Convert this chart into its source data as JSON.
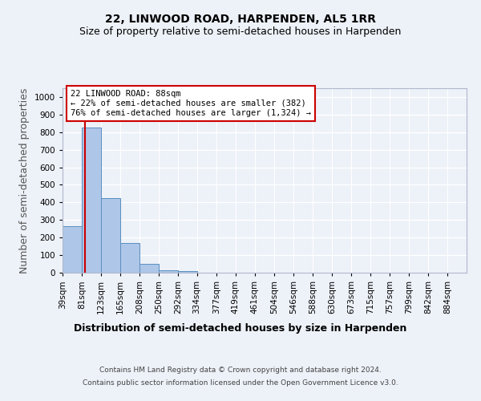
{
  "title_line1": "22, LINWOOD ROAD, HARPENDEN, AL5 1RR",
  "title_line2": "Size of property relative to semi-detached houses in Harpenden",
  "xlabel": "Distribution of semi-detached houses by size in Harpenden",
  "ylabel": "Number of semi-detached properties",
  "bin_labels": [
    "39sqm",
    "81sqm",
    "123sqm",
    "165sqm",
    "208sqm",
    "250sqm",
    "292sqm",
    "334sqm",
    "377sqm",
    "419sqm",
    "461sqm",
    "504sqm",
    "546sqm",
    "588sqm",
    "630sqm",
    "673sqm",
    "715sqm",
    "757sqm",
    "799sqm",
    "842sqm",
    "884sqm"
  ],
  "bin_edges": [
    39,
    81,
    123,
    165,
    208,
    250,
    292,
    334,
    377,
    419,
    461,
    504,
    546,
    588,
    630,
    673,
    715,
    757,
    799,
    842,
    884,
    926
  ],
  "bar_heights": [
    265,
    825,
    425,
    168,
    52,
    15,
    10,
    0,
    0,
    0,
    0,
    0,
    0,
    0,
    0,
    0,
    0,
    0,
    0,
    0,
    0
  ],
  "bar_color": "#aec6e8",
  "bar_edge_color": "#5a8fc0",
  "property_value": 88,
  "red_line_color": "#cc0000",
  "annotation_text_line1": "22 LINWOOD ROAD: 88sqm",
  "annotation_text_line2": "← 22% of semi-detached houses are smaller (382)",
  "annotation_text_line3": "76% of semi-detached houses are larger (1,324) →",
  "annotation_box_color": "white",
  "annotation_box_edge": "#cc0000",
  "ylim": [
    0,
    1050
  ],
  "yticks": [
    0,
    100,
    200,
    300,
    400,
    500,
    600,
    700,
    800,
    900,
    1000
  ],
  "footer_line1": "Contains HM Land Registry data © Crown copyright and database right 2024.",
  "footer_line2": "Contains public sector information licensed under the Open Government Licence v3.0.",
  "bg_color": "#edf1f8",
  "grid_color": "#ffffff",
  "title_fontsize": 10,
  "subtitle_fontsize": 9,
  "axis_label_fontsize": 9,
  "tick_fontsize": 7.5
}
